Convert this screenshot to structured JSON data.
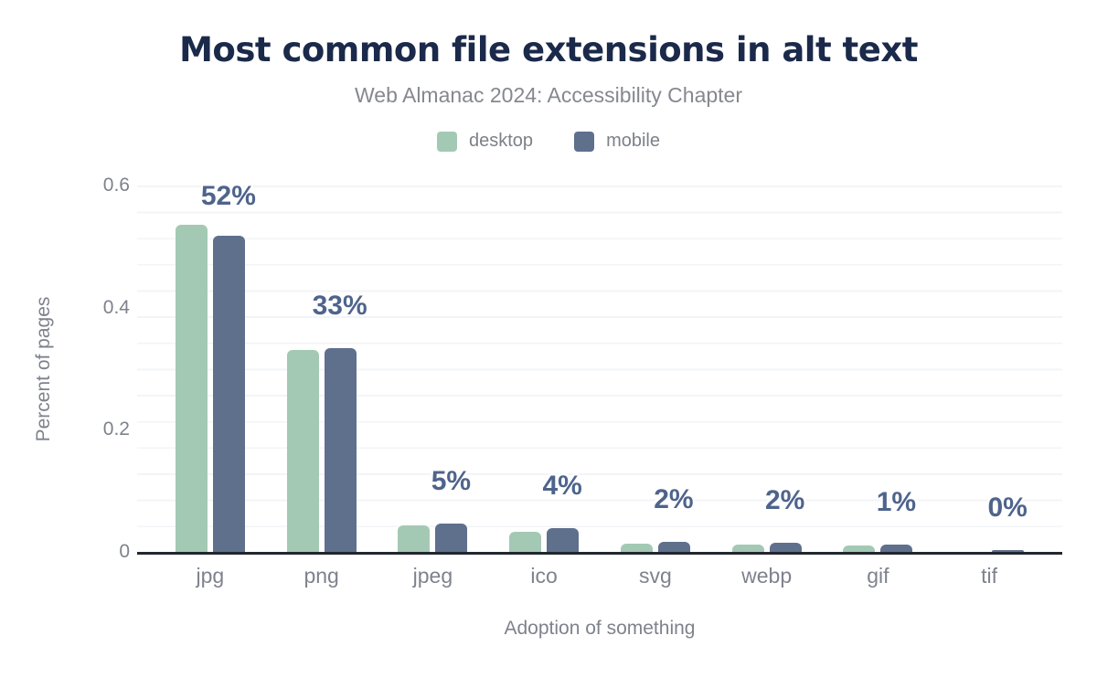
{
  "header": {
    "title": "Most common file extensions in alt text",
    "subtitle": "Web Almanac 2024: Accessibility Chapter"
  },
  "chart_data": {
    "type": "bar",
    "title": "Most common file extensions in alt text",
    "subtitle": "Web Almanac 2024: Accessibility Chapter",
    "categories": [
      "jpg",
      "png",
      "jpeg",
      "ico",
      "svg",
      "webp",
      "gif",
      "tif"
    ],
    "series": [
      {
        "name": "desktop",
        "color": "#a3c9b5",
        "values": [
          0.535,
          0.331,
          0.043,
          0.033,
          0.014,
          0.012,
          0.01,
          0.0
        ]
      },
      {
        "name": "mobile",
        "color": "#5f708d",
        "values": [
          0.517,
          0.334,
          0.046,
          0.039,
          0.016,
          0.015,
          0.012,
          0.003
        ]
      }
    ],
    "bar_labels": [
      "52%",
      "33%",
      "5%",
      "4%",
      "2%",
      "2%",
      "1%",
      "0%"
    ],
    "xlabel": "Adoption of something",
    "ylabel": "Percent of pages",
    "yticks": [
      0,
      0.2,
      0.4,
      0.6
    ],
    "ytick_labels": [
      "0",
      "0.2",
      "0.4",
      "0.6"
    ],
    "ylim": [
      0,
      0.6
    ],
    "grid": "faint-horizontal",
    "legend_position": "top"
  },
  "colors": {
    "background": "#ffffff",
    "title": "#1b2a4a",
    "subtitle": "#85888e",
    "axis_text": "#7e828c",
    "value_label": "#4f648c",
    "axis_line": "#22262e",
    "gridline": "#f3f4f7",
    "desktop": "#a3c9b5",
    "mobile": "#5f708d"
  }
}
